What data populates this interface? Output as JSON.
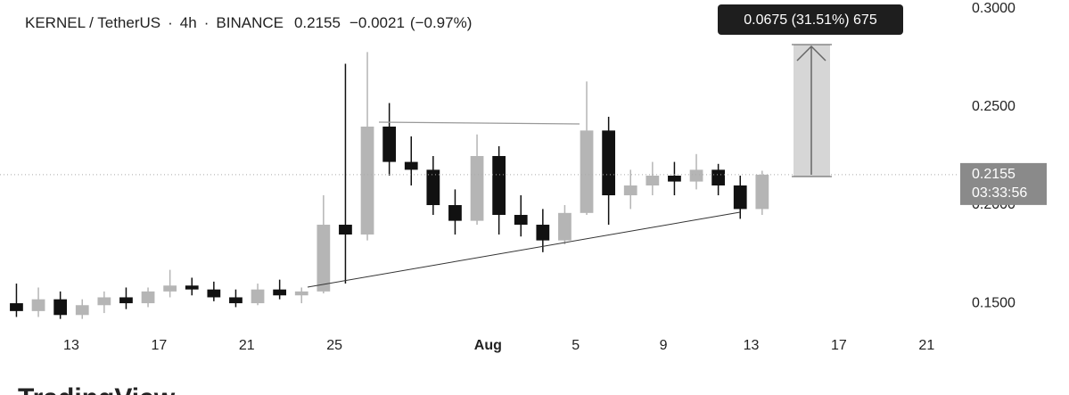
{
  "chart_data": {
    "type": "candlestick",
    "symbol": "KERNEL / TetherUS",
    "interval": "4h",
    "exchange": "BINANCE",
    "last_price": "0.2155",
    "change": "−0.0021",
    "change_percent": "(−0.97%)",
    "price_label": "0.2155",
    "countdown": "03:33:56",
    "measure_label": "0.0675 (31.51%) 675",
    "watermark": "TradingView",
    "x": [
      10,
      11,
      12,
      13,
      14,
      15,
      16,
      17,
      18,
      19,
      20,
      21,
      22,
      23,
      24,
      25,
      26,
      27,
      28,
      29,
      30,
      31,
      32,
      33,
      34,
      35,
      36,
      37,
      38,
      39,
      40,
      41,
      42,
      43,
      44
    ],
    "open": [
      0.15,
      0.146,
      0.152,
      0.144,
      0.149,
      0.153,
      0.15,
      0.156,
      0.159,
      0.157,
      0.153,
      0.15,
      0.157,
      0.154,
      0.156,
      0.19,
      0.185,
      0.24,
      0.222,
      0.218,
      0.2,
      0.192,
      0.225,
      0.195,
      0.19,
      0.182,
      0.196,
      0.238,
      0.205,
      0.21,
      0.215,
      0.212,
      0.218,
      0.21,
      0.198
    ],
    "high": [
      0.16,
      0.158,
      0.156,
      0.152,
      0.156,
      0.158,
      0.158,
      0.167,
      0.163,
      0.161,
      0.157,
      0.16,
      0.162,
      0.158,
      0.205,
      0.272,
      0.278,
      0.252,
      0.235,
      0.225,
      0.208,
      0.236,
      0.23,
      0.205,
      0.198,
      0.2,
      0.263,
      0.245,
      0.218,
      0.222,
      0.222,
      0.226,
      0.221,
      0.215,
      0.2175
    ],
    "low": [
      0.143,
      0.143,
      0.142,
      0.142,
      0.145,
      0.147,
      0.148,
      0.153,
      0.154,
      0.151,
      0.148,
      0.149,
      0.152,
      0.15,
      0.155,
      0.16,
      0.182,
      0.215,
      0.21,
      0.195,
      0.185,
      0.19,
      0.185,
      0.184,
      0.176,
      0.18,
      0.195,
      0.19,
      0.198,
      0.205,
      0.205,
      0.208,
      0.205,
      0.193,
      0.195
    ],
    "close": [
      0.146,
      0.152,
      0.144,
      0.149,
      0.153,
      0.15,
      0.156,
      0.159,
      0.157,
      0.153,
      0.15,
      0.157,
      0.154,
      0.156,
      0.19,
      0.185,
      0.24,
      0.222,
      0.218,
      0.2,
      0.192,
      0.225,
      0.195,
      0.19,
      0.182,
      0.196,
      0.238,
      0.205,
      0.21,
      0.215,
      0.212,
      0.218,
      0.21,
      0.198,
      0.2155
    ],
    "up_color": "#b5b5b5",
    "down_color": "#111111",
    "xlim": [
      9.75,
      53.45
    ],
    "xticks": [
      13,
      17,
      21,
      25,
      {
        "value": 32,
        "label": "Aug"
      },
      {
        "value": 36,
        "label": "5"
      },
      {
        "value": 40,
        "label": "9"
      },
      {
        "value": 44,
        "label": "13"
      },
      {
        "value": 48,
        "label": "17"
      },
      {
        "value": 52,
        "label": "21"
      }
    ],
    "ylim": [
      0.1364,
      0.3045
    ],
    "yticks": [
      {
        "value": 0.15,
        "label": "0.1500"
      },
      {
        "value": 0.2,
        "label": "0.2000"
      },
      {
        "value": 0.25,
        "label": "0.2500"
      },
      {
        "value": 0.3,
        "label": "0.3000"
      }
    ]
  }
}
